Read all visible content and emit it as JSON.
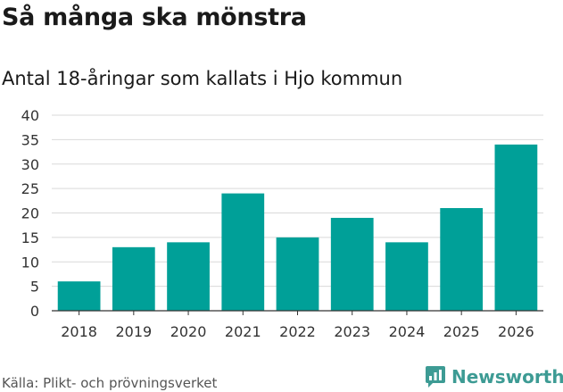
{
  "header": {
    "title": "Så många ska mönstra",
    "subtitle": "Antal 18-åringar som kallats i Hjo kommun"
  },
  "footer": {
    "source": "Källa: Plikt- och prövningsverket",
    "brand": "Newsworthy"
  },
  "colors": {
    "bar": "#00a098",
    "grid": "#d9d9d9",
    "axis": "#333333",
    "brand": "#3d9b94"
  },
  "chart_data": {
    "type": "bar",
    "title": "Så många ska mönstra",
    "subtitle": "Antal 18-åringar som kallats i Hjo kommun",
    "xlabel": "",
    "ylabel": "",
    "categories": [
      "2018",
      "2019",
      "2020",
      "2021",
      "2022",
      "2023",
      "2024",
      "2025",
      "2026"
    ],
    "values": [
      6,
      13,
      14,
      24,
      15,
      19,
      14,
      21,
      34
    ],
    "ylim": [
      0,
      40
    ],
    "yticks": [
      0,
      5,
      10,
      15,
      20,
      25,
      30,
      35,
      40
    ],
    "grid": true,
    "legend": "none"
  }
}
